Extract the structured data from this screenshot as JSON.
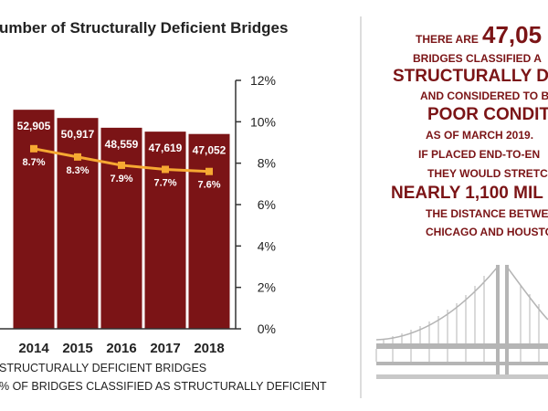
{
  "chart_data": {
    "type": "bar",
    "title": "umber of Structurally Deficient Bridges",
    "categories": [
      "2014",
      "2015",
      "2016",
      "2017",
      "2018"
    ],
    "series": [
      {
        "name": "STRUCTURALLY DEFICIENT BRIDGES",
        "color": "#7b1416",
        "values": [
          52905,
          50917,
          48559,
          47619,
          47052
        ],
        "value_labels": [
          "52,905",
          "50,917",
          "48,559",
          "47,619",
          "47,052"
        ]
      },
      {
        "name": "% OF BRIDGES CLASSIFIED AS STRUCTURALLY DEFICIENT",
        "color": "#f6a832",
        "axis": "y2",
        "type": "line",
        "values": [
          8.7,
          8.3,
          7.9,
          7.7,
          7.6
        ],
        "value_labels": [
          "8.7%",
          "8.3%",
          "7.9%",
          "7.7%",
          "7.6%"
        ]
      }
    ],
    "ylim": [
      0,
      60000
    ],
    "y2lim": [
      0,
      12
    ],
    "y2ticks": [
      {
        "value": 0,
        "label": "0%"
      },
      {
        "value": 2,
        "label": "2%"
      },
      {
        "value": 4,
        "label": "4%"
      },
      {
        "value": 6,
        "label": "6%"
      },
      {
        "value": 8,
        "label": "8%"
      },
      {
        "value": 10,
        "label": "10%"
      },
      {
        "value": 12,
        "label": "12%"
      }
    ]
  },
  "panel": {
    "lines": [
      {
        "text": "THERE ARE",
        "style": "small"
      },
      {
        "text": "47,05",
        "style": "huge"
      },
      {
        "text": "BRIDGES CLASSIFIED A",
        "style": "small"
      },
      {
        "text": "STRUCTURALLY DEFI",
        "style": "big"
      },
      {
        "text": "AND CONSIDERED TO B",
        "style": "small"
      },
      {
        "text": "POOR CONDITIO",
        "style": "big"
      },
      {
        "text": "AS OF MARCH 2019.",
        "style": "small"
      },
      {
        "text": "IF PLACED END-TO-EN",
        "style": "small"
      },
      {
        "text": "THEY WOULD STRETC",
        "style": "small"
      },
      {
        "text": "NEARLY 1,100 MIL",
        "style": "big"
      },
      {
        "text": "THE DISTANCE BETWE",
        "style": "small"
      },
      {
        "text": "CHICAGO AND HOUSTO",
        "style": "small"
      }
    ]
  }
}
